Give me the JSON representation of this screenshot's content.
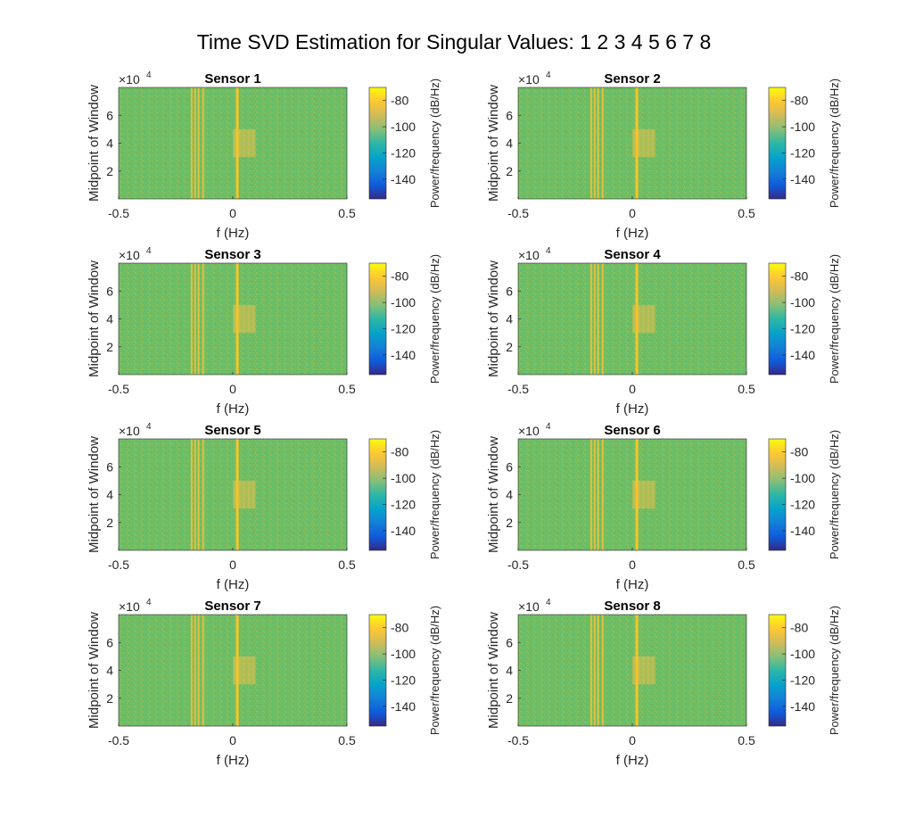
{
  "figure": {
    "title": "Time SVD Estimation for Singular Values: 1  2  3  4  5  6  7  8"
  },
  "chart_data": [
    {
      "type": "heatmap",
      "title": "Sensor 1",
      "xlabel": "f (Hz)",
      "ylabel": "Midpoint of Window",
      "xlim": [
        -0.5,
        0.5
      ],
      "ylim": [
        0,
        80000
      ],
      "xticks": [
        "-0.5",
        "0",
        "0.5"
      ],
      "yticks": [
        "2",
        "4",
        "6"
      ],
      "y_exponent": {
        "base": "×10",
        "power": "4"
      },
      "colorbar": {
        "label": "Power/frequency (dB/Hz)",
        "range": [
          -155,
          -70
        ],
        "ticks": [
          "-80",
          "-100",
          "-120",
          "-140"
        ]
      },
      "features": {
        "background_db": -100,
        "tone_lines_hz": [
          -0.18,
          -0.165,
          -0.15,
          -0.13,
          0.02
        ],
        "band": {
          "f": [
            0.0,
            0.1
          ],
          "t": [
            30000,
            50000
          ],
          "db": -88
        }
      }
    },
    {
      "type": "heatmap",
      "title": "Sensor 2",
      "xlabel": "f (Hz)",
      "ylabel": "Midpoint of Window",
      "xlim": [
        -0.5,
        0.5
      ],
      "ylim": [
        0,
        80000
      ],
      "xticks": [
        "-0.5",
        "0",
        "0.5"
      ],
      "yticks": [
        "2",
        "4",
        "6"
      ],
      "y_exponent": {
        "base": "×10",
        "power": "4"
      },
      "colorbar": {
        "label": "Power/frequency (dB/Hz)",
        "range": [
          -155,
          -70
        ],
        "ticks": [
          "-80",
          "-100",
          "-120",
          "-140"
        ]
      },
      "features": {
        "background_db": -100,
        "tone_lines_hz": [
          -0.18,
          -0.165,
          -0.15,
          -0.13,
          0.02
        ],
        "band": {
          "f": [
            0.0,
            0.1
          ],
          "t": [
            30000,
            50000
          ],
          "db": -88
        }
      }
    },
    {
      "type": "heatmap",
      "title": "Sensor 3",
      "xlabel": "f (Hz)",
      "ylabel": "Midpoint of Window",
      "xlim": [
        -0.5,
        0.5
      ],
      "ylim": [
        0,
        80000
      ],
      "xticks": [
        "-0.5",
        "0",
        "0.5"
      ],
      "yticks": [
        "2",
        "4",
        "6"
      ],
      "y_exponent": {
        "base": "×10",
        "power": "4"
      },
      "colorbar": {
        "label": "Power/frequency (dB/Hz)",
        "range": [
          -155,
          -70
        ],
        "ticks": [
          "-80",
          "-100",
          "-120",
          "-140"
        ]
      },
      "features": {
        "background_db": -100,
        "tone_lines_hz": [
          -0.18,
          -0.165,
          -0.15,
          -0.13,
          0.02
        ],
        "band": {
          "f": [
            0.0,
            0.1
          ],
          "t": [
            30000,
            50000
          ],
          "db": -88
        }
      }
    },
    {
      "type": "heatmap",
      "title": "Sensor 4",
      "xlabel": "f (Hz)",
      "ylabel": "Midpoint of Window",
      "xlim": [
        -0.5,
        0.5
      ],
      "ylim": [
        0,
        80000
      ],
      "xticks": [
        "-0.5",
        "0",
        "0.5"
      ],
      "yticks": [
        "2",
        "4",
        "6"
      ],
      "y_exponent": {
        "base": "×10",
        "power": "4"
      },
      "colorbar": {
        "label": "Power/frequency (dB/Hz)",
        "range": [
          -155,
          -70
        ],
        "ticks": [
          "-80",
          "-100",
          "-120",
          "-140"
        ]
      },
      "features": {
        "background_db": -100,
        "tone_lines_hz": [
          -0.18,
          -0.165,
          -0.15,
          -0.13,
          0.02
        ],
        "band": {
          "f": [
            0.0,
            0.1
          ],
          "t": [
            30000,
            50000
          ],
          "db": -88
        }
      }
    },
    {
      "type": "heatmap",
      "title": "Sensor 5",
      "xlabel": "f (Hz)",
      "ylabel": "Midpoint of Window",
      "xlim": [
        -0.5,
        0.5
      ],
      "ylim": [
        0,
        80000
      ],
      "xticks": [
        "-0.5",
        "0",
        "0.5"
      ],
      "yticks": [
        "2",
        "4",
        "6"
      ],
      "y_exponent": {
        "base": "×10",
        "power": "4"
      },
      "colorbar": {
        "label": "Power/frequency (dB/Hz)",
        "range": [
          -155,
          -70
        ],
        "ticks": [
          "-80",
          "-100",
          "-120",
          "-140"
        ]
      },
      "features": {
        "background_db": -100,
        "tone_lines_hz": [
          -0.18,
          -0.165,
          -0.15,
          -0.13,
          0.02
        ],
        "band": {
          "f": [
            0.0,
            0.1
          ],
          "t": [
            30000,
            50000
          ],
          "db": -88
        }
      }
    },
    {
      "type": "heatmap",
      "title": "Sensor 6",
      "xlabel": "f (Hz)",
      "ylabel": "Midpoint of Window",
      "xlim": [
        -0.5,
        0.5
      ],
      "ylim": [
        0,
        80000
      ],
      "xticks": [
        "-0.5",
        "0",
        "0.5"
      ],
      "yticks": [
        "2",
        "4",
        "6"
      ],
      "y_exponent": {
        "base": "×10",
        "power": "4"
      },
      "colorbar": {
        "label": "Power/frequency (dB/Hz)",
        "range": [
          -155,
          -70
        ],
        "ticks": [
          "-80",
          "-100",
          "-120",
          "-140"
        ]
      },
      "features": {
        "background_db": -100,
        "tone_lines_hz": [
          -0.18,
          -0.165,
          -0.15,
          -0.13,
          0.02
        ],
        "band": {
          "f": [
            0.0,
            0.1
          ],
          "t": [
            30000,
            50000
          ],
          "db": -88
        }
      }
    },
    {
      "type": "heatmap",
      "title": "Sensor 7",
      "xlabel": "f (Hz)",
      "ylabel": "Midpoint of Window",
      "xlim": [
        -0.5,
        0.5
      ],
      "ylim": [
        0,
        80000
      ],
      "xticks": [
        "-0.5",
        "0",
        "0.5"
      ],
      "yticks": [
        "2",
        "4",
        "6"
      ],
      "y_exponent": {
        "base": "×10",
        "power": "4"
      },
      "colorbar": {
        "label": "Power/frequency (dB/Hz)",
        "range": [
          -155,
          -70
        ],
        "ticks": [
          "-80",
          "-100",
          "-120",
          "-140"
        ]
      },
      "features": {
        "background_db": -100,
        "tone_lines_hz": [
          -0.18,
          -0.165,
          -0.15,
          -0.13,
          0.02
        ],
        "band": {
          "f": [
            0.0,
            0.1
          ],
          "t": [
            30000,
            50000
          ],
          "db": -88
        }
      }
    },
    {
      "type": "heatmap",
      "title": "Sensor 8",
      "xlabel": "f (Hz)",
      "ylabel": "Midpoint of Window",
      "xlim": [
        -0.5,
        0.5
      ],
      "ylim": [
        0,
        80000
      ],
      "xticks": [
        "-0.5",
        "0",
        "0.5"
      ],
      "yticks": [
        "2",
        "4",
        "6"
      ],
      "y_exponent": {
        "base": "×10",
        "power": "4"
      },
      "colorbar": {
        "label": "Power/frequency (dB/Hz)",
        "range": [
          -155,
          -70
        ],
        "ticks": [
          "-80",
          "-100",
          "-120",
          "-140"
        ]
      },
      "features": {
        "background_db": -100,
        "tone_lines_hz": [
          -0.18,
          -0.165,
          -0.15,
          -0.13,
          0.02
        ],
        "band": {
          "f": [
            0.0,
            0.1
          ],
          "t": [
            30000,
            50000
          ],
          "db": -88
        }
      }
    }
  ],
  "colors": {
    "parula": [
      "#352a87",
      "#0f5cdd",
      "#1481d6",
      "#06a4ca",
      "#2eb7a4",
      "#87bf77",
      "#d1bb59",
      "#fec832",
      "#f9fb0e"
    ]
  }
}
